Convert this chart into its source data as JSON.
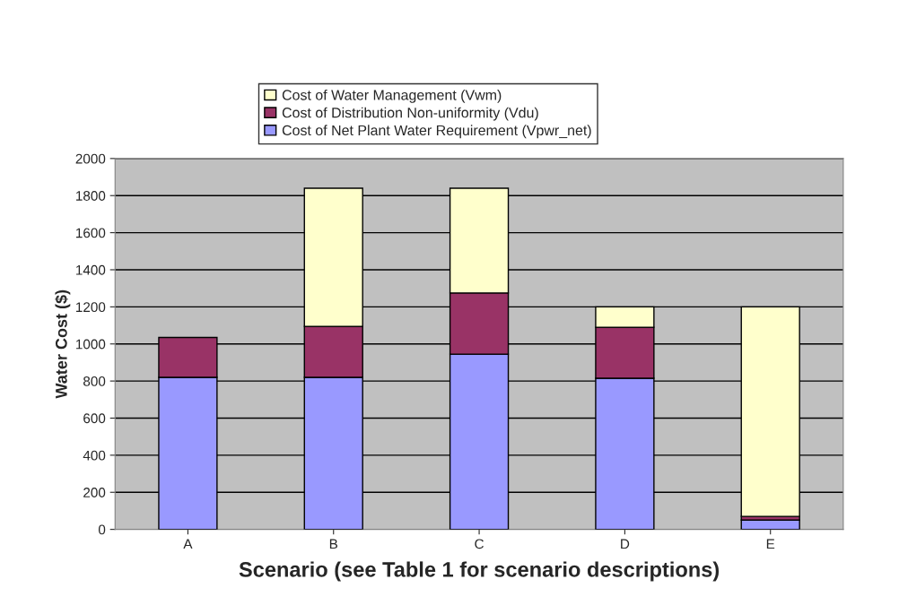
{
  "chart_data": {
    "type": "bar",
    "stacked": true,
    "xlabel": "Scenario (see Table 1 for scenario descriptions)",
    "ylabel": "Water Cost ($)",
    "categories": [
      "A",
      "B",
      "C",
      "D",
      "E"
    ],
    "series": [
      {
        "name": "Cost of Net Plant Water Requirement (Vpwr_net)",
        "color": "#9999ff",
        "values": [
          820,
          820,
          945,
          815,
          50
        ]
      },
      {
        "name": "Cost of Distribution Non-uniformity (Vdu)",
        "color": "#993366",
        "values": [
          215,
          275,
          330,
          275,
          20
        ]
      },
      {
        "name": "Cost of Water Management (Vwm)",
        "color": "#ffffcc",
        "values": [
          null,
          745,
          565,
          110,
          1130
        ]
      }
    ],
    "ylim": [
      0,
      2000
    ],
    "yticks": [
      0,
      200,
      400,
      600,
      800,
      1000,
      1200,
      1400,
      1600,
      1800,
      2000
    ],
    "grid": "y",
    "legend": "top"
  }
}
